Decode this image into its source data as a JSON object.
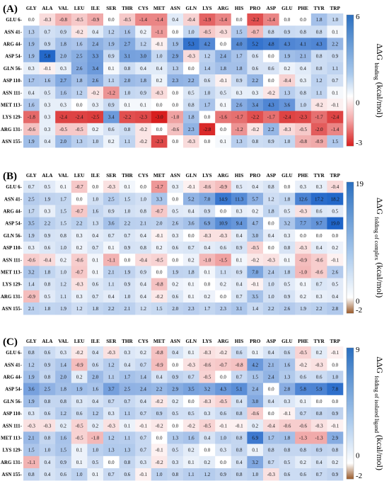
{
  "chart_data": [
    {
      "type": "heatmap",
      "panel_label": "(A)",
      "colorbar": {
        "max_label": "6",
        "mid_label": "0",
        "min_label": "-3",
        "vmax": 6,
        "vmin": -3,
        "label_prefix": "ΔΔG",
        "label_sub": "binding",
        "label_unit": "(kcal/mol)"
      },
      "columns": [
        "GLY",
        "ALA",
        "VAL",
        "LEU",
        "ILE",
        "SER",
        "THR",
        "CYS",
        "MET",
        "ASN",
        "GLN",
        "LYS",
        "ARG",
        "HIS",
        "PRO",
        "ASP",
        "GLU",
        "PHE",
        "TYR",
        "TRP"
      ],
      "rows": [
        "GLU 6-",
        "ASN 41-",
        "ARG 44-",
        "ASP 54-",
        "GLN 56-",
        "ASP 110-",
        "ASN 111-",
        "MET 113-",
        "LYS 129-",
        "ARG 131-",
        "ASN 155-"
      ],
      "values": [
        [
          0.0,
          -0.3,
          -0.8,
          -0.5,
          -0.9,
          0.0,
          -0.5,
          -1.4,
          -1.4,
          0.4,
          -0.4,
          -1.9,
          -1.4,
          0.0,
          -2.2,
          -1.4,
          0.0,
          0.0,
          1.8,
          1.0
        ],
        [
          1.3,
          0.7,
          0.9,
          -0.2,
          0.4,
          1.2,
          1.6,
          0.2,
          -1.1,
          0.0,
          1.0,
          -0.5,
          -0.3,
          1.5,
          -0.7,
          0.8,
          0.9,
          0.8,
          0.8,
          0.1
        ],
        [
          1.9,
          0.9,
          1.8,
          1.6,
          2.4,
          1.9,
          2.7,
          1.2,
          -0.1,
          1.9,
          5.3,
          4.2,
          0.0,
          4.0,
          5.2,
          4.8,
          4.3,
          4.1,
          4.3,
          2.2
        ],
        [
          1.9,
          5.8,
          2.0,
          2.5,
          3.3,
          0.9,
          3.1,
          3.0,
          1.0,
          2.9,
          -0.3,
          1.2,
          2.4,
          1.7,
          0.6,
          0.0,
          1.9,
          2.1,
          0.8,
          0.9
        ],
        [
          0.3,
          -0.1,
          0.3,
          2.6,
          3.4,
          0.1,
          0.8,
          0.4,
          0.4,
          1.3,
          0.0,
          1.4,
          1.8,
          1.8,
          0.6,
          0.6,
          0.2,
          0.4,
          0.8,
          1.1
        ],
        [
          1.7,
          1.6,
          2.7,
          1.8,
          2.6,
          1.1,
          2.0,
          1.8,
          0.2,
          2.3,
          2.2,
          0.6,
          -0.1,
          0.9,
          2.2,
          0.0,
          -0.4,
          0.3,
          1.2,
          0.7
        ],
        [
          0.4,
          0.5,
          1.6,
          1.2,
          -0.2,
          -1.2,
          1.0,
          0.9,
          -0.3,
          0.0,
          0.5,
          1.0,
          0.5,
          0.3,
          0.3,
          -0.2,
          1.3,
          0.8,
          1.1,
          0.1
        ],
        [
          1.6,
          0.3,
          0.3,
          0.0,
          0.3,
          0.9,
          0.1,
          0.1,
          0.0,
          0.0,
          0.8,
          1.7,
          0.1,
          2.6,
          3.4,
          4.3,
          3.6,
          1.0,
          -0.2,
          -0.1
        ],
        [
          -1.8,
          0.3,
          -2.4,
          -2.4,
          -2.5,
          3.4,
          -2.2,
          -2.3,
          -3.0,
          -1.0,
          1.8,
          0.0,
          -1.6,
          -1.7,
          -2.2,
          -1.7,
          -2.4,
          -2.3,
          -1.7,
          -2.4
        ],
        [
          -0.6,
          0.3,
          -0.5,
          -0.5,
          0.2,
          0.6,
          0.8,
          -0.2,
          0.0,
          -0.6,
          2.3,
          -2.8,
          0.0,
          -1.2,
          -0.2,
          2.2,
          -0.3,
          -0.5,
          -2.0,
          -1.4
        ],
        [
          1.9,
          0.4,
          2.0,
          1.3,
          1.0,
          0.2,
          1.1,
          -0.2,
          -2.3,
          0.0,
          -0.3,
          0.0,
          0.1,
          1.3,
          0.8,
          0.9,
          1.0,
          -0.8,
          -0.9,
          1.5
        ]
      ]
    },
    {
      "type": "heatmap",
      "panel_label": "(B)",
      "colorbar": {
        "max_label": "19",
        "mid_label": "0",
        "min_label": "-2",
        "vmax": 19,
        "vmin": -2,
        "label_prefix": "ΔΔG",
        "label_sub": "folding of complex",
        "label_unit": "(kcal/mol)"
      },
      "columns": [
        "GLY",
        "ALA",
        "VAL",
        "LEU",
        "ILE",
        "SER",
        "THR",
        "CYS",
        "MET",
        "ASN",
        "GLN",
        "LYS",
        "ARG",
        "HIS",
        "PRO",
        "ASP",
        "GLU",
        "PHE",
        "TYR",
        "TRP"
      ],
      "rows": [
        "GLU 6-",
        "ASN 41-",
        "ARG 44-",
        "ASP 54-",
        "GLN 56-",
        "ASP 110-",
        "ASN 111-",
        "MET 113-",
        "LYS 129-",
        "ARG 131-",
        "ASN 155-"
      ],
      "values": [
        [
          0.7,
          0.5,
          0.1,
          -0.7,
          0.0,
          -0.3,
          0.1,
          0.0,
          -1.7,
          0.3,
          -0.1,
          -0.6,
          -0.9,
          0.5,
          0.4,
          0.8,
          0.0,
          0.3,
          0.3,
          -0.4
        ],
        [
          2.5,
          1.9,
          1.7,
          0.0,
          1.0,
          2.5,
          1.5,
          1.0,
          3.3,
          0.0,
          5.2,
          7.0,
          14.9,
          11.3,
          5.7,
          1.2,
          1.8,
          12.6,
          17.2,
          18.2
        ],
        [
          1.7,
          0.3,
          1.5,
          -0.7,
          1.6,
          0.9,
          1.0,
          0.8,
          -0.7,
          0.5,
          0.4,
          0.9,
          0.0,
          0.3,
          0.2,
          1.8,
          0.5,
          -0.3,
          0.6,
          0.5
        ],
        [
          3.5,
          2.2,
          1.5,
          2.2,
          1.3,
          3.6,
          2.2,
          2.1,
          2.0,
          2.6,
          3.6,
          6.9,
          10.9,
          9.4,
          4.7,
          0.0,
          3.2,
          7.7,
          9.7,
          19.0
        ],
        [
          1.9,
          0.9,
          0.8,
          0.3,
          0.4,
          0.7,
          0.7,
          0.4,
          -0.1,
          0.3,
          0.0,
          -0.3,
          -0.3,
          0.4,
          3.0,
          0.4,
          0.3,
          0.0,
          0.0,
          0.0
        ],
        [
          0.3,
          0.6,
          1.0,
          0.2,
          0.7,
          0.1,
          0.9,
          0.8,
          0.2,
          0.6,
          0.7,
          0.4,
          0.6,
          0.9,
          -0.5,
          0.0,
          0.8,
          -0.3,
          0.4,
          0.2
        ],
        [
          -0.6,
          -0.4,
          0.2,
          -0.6,
          0.1,
          -1.1,
          0.0,
          -0.4,
          -0.5,
          0.0,
          0.2,
          -1.0,
          -1.5,
          0.1,
          -0.2,
          -0.3,
          0.1,
          -0.9,
          -0.6,
          -0.1
        ],
        [
          3.2,
          1.8,
          1.0,
          -0.7,
          0.1,
          2.1,
          1.9,
          0.9,
          0.0,
          1.9,
          1.8,
          0.1,
          1.1,
          0.9,
          7.0,
          2.4,
          1.8,
          -1.0,
          -0.6,
          2.6
        ],
        [
          1.4,
          0.8,
          1.2,
          -0.3,
          0.6,
          1.1,
          0.9,
          0.4,
          -0.8,
          0.2,
          0.1,
          0.0,
          0.2,
          0.4,
          -0.1,
          1.0,
          0.5,
          0.1,
          0.7,
          0.5
        ],
        [
          -0.9,
          0.5,
          1.1,
          0.3,
          0.7,
          0.4,
          1.0,
          0.4,
          -0.2,
          0.6,
          0.1,
          0.2,
          0.0,
          0.7,
          3.5,
          1.0,
          0.9,
          0.2,
          0.3,
          0.4
        ],
        [
          2.1,
          1.8,
          1.9,
          1.2,
          1.8,
          2.2,
          2.1,
          1.2,
          1.5,
          2.0,
          2.3,
          1.7,
          2.3,
          3.1,
          1.4,
          2.2,
          2.6,
          1.9,
          2.2,
          2.8
        ]
      ]
    },
    {
      "type": "heatmap",
      "panel_label": "(C)",
      "colorbar": {
        "max_label": "9",
        "mid_label": "0",
        "min_label": "-2",
        "vmax": 9,
        "vmin": -2,
        "label_prefix": "ΔΔG",
        "label_sub": "folding of isolated ligand",
        "label_unit": "(kcal/mol)"
      },
      "columns": [
        "GLY",
        "ALA",
        "VAL",
        "LEU",
        "ILE",
        "SER",
        "THR",
        "CYS",
        "MET",
        "ASN",
        "GLN",
        "LYS",
        "ARG",
        "HIS",
        "PRO",
        "ASP",
        "GLU",
        "PHE",
        "TYR",
        "TRP"
      ],
      "rows": [
        "GLU 6-",
        "ASN 41-",
        "ARG 44-",
        "ASP 54-",
        "GLN 56-",
        "ASP 110-",
        "ASN 111-",
        "MET 113-",
        "LYS 129-",
        "ARG 131-",
        "ASN 155-"
      ],
      "values": [
        [
          0.8,
          0.6,
          0.3,
          -0.2,
          0.4,
          -0.3,
          0.3,
          0.2,
          -0.8,
          0.4,
          0.1,
          -0.3,
          -0.2,
          0.6,
          0.1,
          0.4,
          0.6,
          -0.5,
          0.2,
          -0.1
        ],
        [
          1.2,
          0.9,
          1.4,
          -0.9,
          0.6,
          1.2,
          0.4,
          0.7,
          -0.9,
          0.0,
          -0.3,
          -0.6,
          -0.7,
          -0.8,
          4.2,
          2.1,
          1.6,
          -0.2,
          -0.3,
          0.0
        ],
        [
          1.9,
          0.8,
          2.0,
          0.2,
          2.0,
          1.1,
          1.7,
          1.4,
          0.4,
          0.9,
          0.7,
          -0.5,
          0.0,
          0.7,
          1.5,
          2.4,
          1.3,
          0.6,
          0.6,
          1.0
        ],
        [
          3.6,
          2.5,
          1.8,
          1.9,
          1.6,
          3.7,
          2.5,
          2.4,
          2.2,
          2.9,
          3.5,
          3.2,
          4.3,
          5.1,
          2.4,
          0.0,
          2.8,
          5.8,
          5.9,
          7.8
        ],
        [
          1.9,
          0.8,
          0.8,
          0.3,
          0.4,
          0.7,
          0.7,
          0.4,
          -0.2,
          0.2,
          0.0,
          -0.3,
          -0.5,
          0.4,
          3.0,
          0.4,
          0.3,
          0.1,
          0.0,
          0.0
        ],
        [
          0.3,
          0.6,
          1.2,
          0.6,
          1.2,
          0.3,
          1.1,
          0.7,
          0.9,
          0.5,
          0.5,
          0.3,
          0.6,
          0.8,
          -0.6,
          0.0,
          -0.1,
          0.7,
          0.8,
          0.9
        ],
        [
          -0.3,
          -0.3,
          0.2,
          -0.5,
          0.2,
          -0.3,
          0.1,
          -0.1,
          -0.2,
          0.0,
          -0.2,
          -0.5,
          -0.1,
          -0.1,
          0.2,
          -0.4,
          -0.6,
          -0.6,
          -0.3,
          -0.1
        ],
        [
          2.1,
          0.8,
          1.6,
          -0.5,
          -1.0,
          1.2,
          1.1,
          0.7,
          0.0,
          1.3,
          1.6,
          0.4,
          1.0,
          0.8,
          6.9,
          1.7,
          1.8,
          -1.3,
          -1.3,
          2.9
        ],
        [
          1.5,
          1.0,
          1.5,
          0.1,
          1.0,
          1.3,
          1.3,
          0.7,
          -0.1,
          0.5,
          0.2,
          0.0,
          0.3,
          0.8,
          0.1,
          0.8,
          0.8,
          0.8,
          0.9,
          0.8
        ],
        [
          -1.1,
          0.4,
          0.9,
          0.1,
          0.5,
          0.0,
          0.8,
          0.3,
          -0.2,
          0.3,
          0.1,
          0.2,
          0.0,
          0.4,
          3.2,
          0.7,
          0.5,
          0.2,
          0.4,
          0.2
        ],
        [
          0.8,
          0.4,
          0.6,
          1.0,
          0.1,
          0.7,
          0.6,
          -0.1,
          1.0,
          0.8,
          1.1,
          1.2,
          0.9,
          0.8,
          1.0,
          -0.3,
          0.6,
          0.6,
          0.7,
          0.9
        ]
      ]
    }
  ]
}
